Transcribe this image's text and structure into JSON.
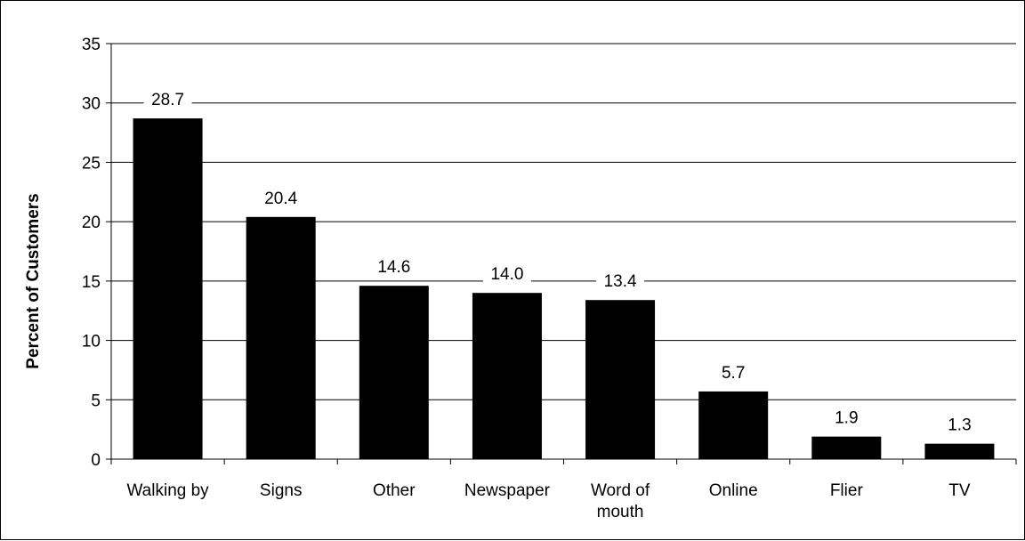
{
  "chart_data": {
    "type": "bar",
    "title": "",
    "xlabel": "",
    "ylabel": "Percent of Customers",
    "ylim": [
      0,
      35
    ],
    "yticks": [
      0,
      5,
      10,
      15,
      20,
      25,
      30,
      35
    ],
    "grid": true,
    "legend": "none",
    "categories": [
      [
        "Walking by"
      ],
      [
        "Signs"
      ],
      [
        "Other"
      ],
      [
        "Newspaper"
      ],
      [
        "Word of",
        "mouth"
      ],
      [
        "Online"
      ],
      [
        "Flier"
      ],
      [
        "TV"
      ]
    ],
    "values": [
      28.7,
      20.4,
      14.6,
      14.0,
      13.4,
      5.7,
      1.9,
      1.3
    ],
    "data_labels": [
      "28.7",
      "20.4",
      "14.6",
      "14.0",
      "13.4",
      "5.7",
      "1.9",
      "1.3"
    ],
    "colors": {
      "bar": "#000000",
      "grid": "#000000",
      "axis": "#000000"
    }
  }
}
